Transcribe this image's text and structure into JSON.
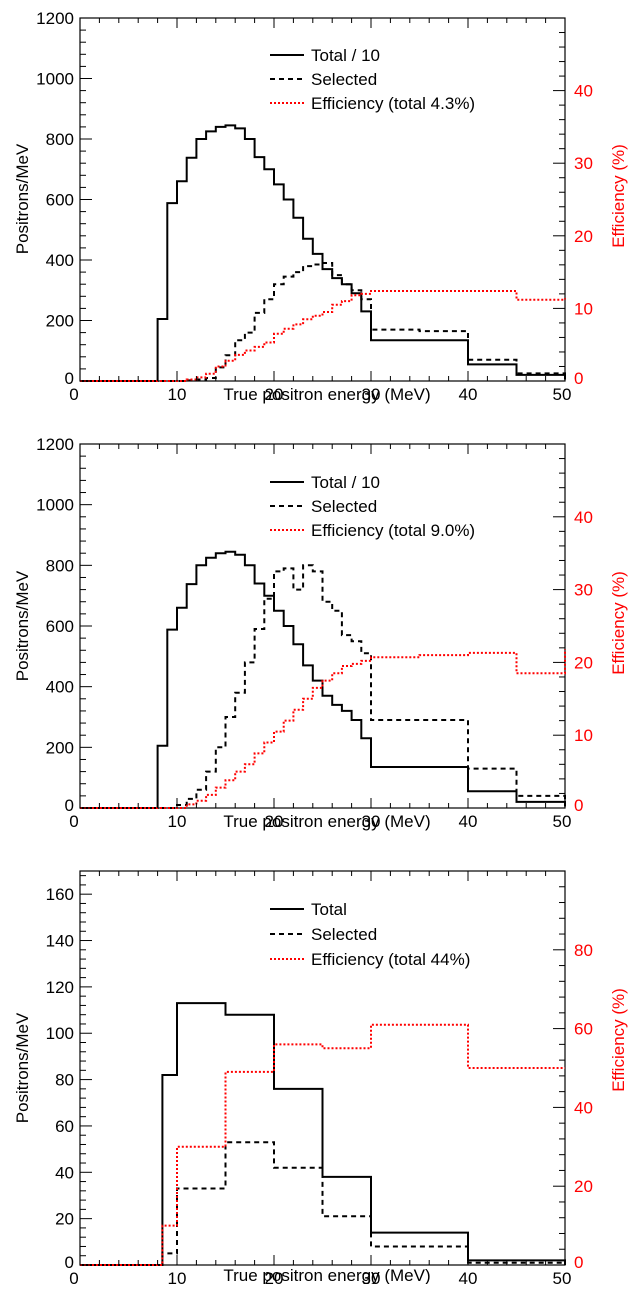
{
  "chart_data": [
    {
      "type": "line",
      "step": true,
      "xlabel": "True positron energy (MeV)",
      "ylabel": "Positrons/MeV",
      "y2label": "Efficiency (%)",
      "xlim": [
        0,
        50
      ],
      "ylim": [
        0,
        1200
      ],
      "y2lim": [
        0,
        50
      ],
      "x_ticks": [
        "0",
        "10",
        "20",
        "30",
        "40",
        "50"
      ],
      "y_ticks": [
        "0",
        "200",
        "400",
        "600",
        "800",
        "1000",
        "1200"
      ],
      "y2_ticks": [
        "0",
        "10",
        "20",
        "30",
        "40"
      ],
      "legend": [
        "Total / 10",
        "Selected",
        "Efficiency (total 4.3%)"
      ],
      "legend_position": "top-center",
      "colors": {
        "total": "#000000",
        "selected": "#000000",
        "efficiency": "#ff0000"
      },
      "series": [
        {
          "axis": "left",
          "edges": [
            0,
            1,
            2,
            3,
            4,
            5,
            6,
            7,
            8,
            9,
            10,
            11,
            12,
            13,
            14,
            15,
            16,
            17,
            18,
            19,
            20,
            21,
            22,
            23,
            24,
            25,
            26,
            27,
            28,
            29,
            30,
            35,
            40,
            45,
            50
          ],
          "values": [
            0,
            0,
            0,
            0,
            0,
            0,
            0,
            0,
            205,
            588,
            660,
            738,
            800,
            825,
            840,
            845,
            835,
            800,
            740,
            700,
            650,
            600,
            540,
            470,
            420,
            370,
            340,
            320,
            290,
            230,
            135,
            135,
            55,
            20,
            5
          ]
        },
        {
          "axis": "left",
          "edges": [
            0,
            1,
            2,
            3,
            4,
            5,
            6,
            7,
            8,
            9,
            10,
            11,
            12,
            13,
            14,
            15,
            16,
            17,
            18,
            19,
            20,
            21,
            22,
            23,
            24,
            25,
            26,
            27,
            28,
            29,
            30,
            35,
            40,
            45,
            50
          ],
          "values": [
            0,
            0,
            0,
            0,
            0,
            0,
            0,
            0,
            0,
            0,
            0,
            2,
            5,
            10,
            45,
            85,
            135,
            160,
            225,
            270,
            320,
            345,
            360,
            380,
            385,
            390,
            350,
            320,
            300,
            270,
            170,
            165,
            70,
            25,
            10
          ]
        },
        {
          "axis": "right",
          "edges": [
            0,
            1,
            2,
            3,
            4,
            5,
            6,
            7,
            8,
            9,
            10,
            11,
            12,
            13,
            14,
            15,
            16,
            17,
            18,
            19,
            20,
            21,
            22,
            23,
            24,
            25,
            26,
            27,
            28,
            29,
            30,
            35,
            40,
            45,
            50
          ],
          "values": [
            0,
            0,
            0,
            0,
            0,
            0,
            0,
            0,
            0,
            0,
            0,
            0.2,
            0.5,
            1,
            2,
            2.8,
            3.6,
            4.2,
            4.7,
            5.3,
            6.5,
            7.2,
            7.8,
            8.5,
            9,
            9.5,
            10.5,
            11,
            11.8,
            12,
            12.4,
            12.4,
            12.4,
            11.2,
            11.4
          ]
        }
      ]
    },
    {
      "type": "line",
      "step": true,
      "xlabel": "True positron energy (MeV)",
      "ylabel": "Positrons/MeV",
      "y2label": "Efficiency (%)",
      "xlim": [
        0,
        50
      ],
      "ylim": [
        0,
        1200
      ],
      "y2lim": [
        0,
        50
      ],
      "x_ticks": [
        "0",
        "10",
        "20",
        "30",
        "40",
        "50"
      ],
      "y_ticks": [
        "0",
        "200",
        "400",
        "600",
        "800",
        "1000",
        "1200"
      ],
      "y2_ticks": [
        "0",
        "10",
        "20",
        "30",
        "40"
      ],
      "legend": [
        "Total / 10",
        "Selected",
        "Efficiency (total 9.0%)"
      ],
      "legend_position": "top-center",
      "colors": {
        "total": "#000000",
        "selected": "#000000",
        "efficiency": "#ff0000"
      },
      "series": [
        {
          "axis": "left",
          "edges": [
            0,
            1,
            2,
            3,
            4,
            5,
            6,
            7,
            8,
            9,
            10,
            11,
            12,
            13,
            14,
            15,
            16,
            17,
            18,
            19,
            20,
            21,
            22,
            23,
            24,
            25,
            26,
            27,
            28,
            29,
            30,
            35,
            40,
            45,
            50
          ],
          "values": [
            0,
            0,
            0,
            0,
            0,
            0,
            0,
            0,
            205,
            588,
            660,
            738,
            800,
            825,
            840,
            845,
            835,
            800,
            740,
            700,
            650,
            600,
            540,
            470,
            420,
            370,
            340,
            320,
            290,
            230,
            135,
            135,
            55,
            20,
            5
          ]
        },
        {
          "axis": "left",
          "edges": [
            0,
            1,
            2,
            3,
            4,
            5,
            6,
            7,
            8,
            9,
            10,
            11,
            12,
            13,
            14,
            15,
            16,
            17,
            18,
            19,
            20,
            21,
            22,
            23,
            24,
            25,
            26,
            27,
            28,
            29,
            30,
            35,
            40,
            45,
            50
          ],
          "values": [
            0,
            0,
            0,
            0,
            0,
            0,
            0,
            0,
            0,
            0,
            10,
            30,
            60,
            120,
            200,
            300,
            380,
            480,
            590,
            690,
            780,
            790,
            720,
            800,
            780,
            680,
            650,
            570,
            550,
            510,
            290,
            290,
            130,
            40,
            15
          ]
        },
        {
          "axis": "right",
          "edges": [
            0,
            1,
            2,
            3,
            4,
            5,
            6,
            7,
            8,
            9,
            10,
            11,
            12,
            13,
            14,
            15,
            16,
            17,
            18,
            19,
            20,
            21,
            22,
            23,
            24,
            25,
            26,
            27,
            28,
            29,
            30,
            35,
            40,
            45,
            50
          ],
          "values": [
            0,
            0,
            0,
            0,
            0,
            0,
            0,
            0,
            0,
            0,
            0,
            0.5,
            1,
            1.8,
            2.8,
            3.8,
            5,
            6,
            7.5,
            9,
            10.5,
            12,
            13.5,
            15,
            16.5,
            17.5,
            18.5,
            19.5,
            19.8,
            20.2,
            20.7,
            21,
            21.3,
            18.5,
            21.8
          ]
        }
      ]
    },
    {
      "type": "line",
      "step": true,
      "xlabel": "True positron energy (MeV)",
      "ylabel": "Positrons/MeV",
      "y2label": "Efficiency (%)",
      "xlim": [
        0,
        50
      ],
      "ylim": [
        0,
        170
      ],
      "y2lim": [
        0,
        100
      ],
      "x_ticks": [
        "0",
        "10",
        "20",
        "30",
        "40",
        "50"
      ],
      "y_ticks": [
        "0",
        "20",
        "40",
        "60",
        "80",
        "100",
        "120",
        "140",
        "160"
      ],
      "y2_ticks": [
        "0",
        "20",
        "40",
        "60",
        "80"
      ],
      "legend": [
        "Total",
        "Selected",
        "Efficiency (total 44%)"
      ],
      "legend_position": "top-center",
      "colors": {
        "total": "#000000",
        "selected": "#000000",
        "efficiency": "#ff0000"
      },
      "series": [
        {
          "axis": "left",
          "edges": [
            0,
            5,
            8.5,
            10,
            15,
            20,
            25,
            30,
            40,
            50
          ],
          "values": [
            0,
            0,
            82,
            113,
            108,
            76,
            38,
            14,
            2,
            0
          ]
        },
        {
          "axis": "left",
          "edges": [
            0,
            5,
            8.5,
            10,
            15,
            20,
            25,
            30,
            40,
            50
          ],
          "values": [
            0,
            0,
            5,
            33,
            53,
            42,
            21,
            8,
            1,
            0
          ]
        },
        {
          "axis": "right",
          "edges": [
            0,
            5,
            8.5,
            10,
            15,
            20,
            25,
            30,
            40,
            50
          ],
          "values": [
            0,
            0,
            10,
            30,
            49,
            56,
            55,
            61,
            50,
            50
          ]
        }
      ]
    }
  ]
}
